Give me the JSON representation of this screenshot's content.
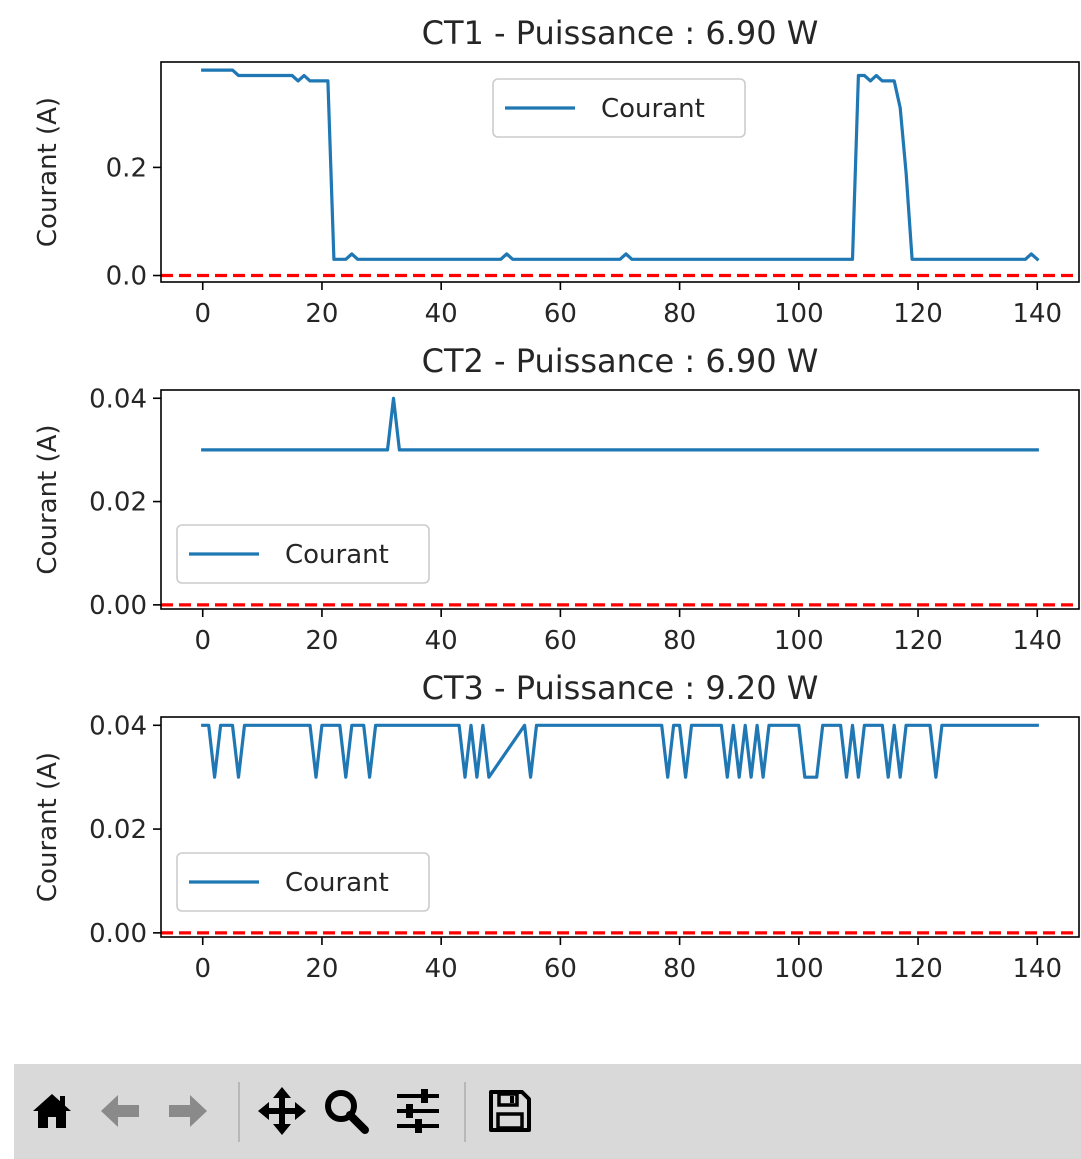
{
  "chart_data": [
    {
      "type": "line",
      "title": "CT1 - Puissance : 6.90 W",
      "ylabel": "Courant (A)",
      "xlabel": "",
      "xlim": [
        -7,
        147
      ],
      "ylim": [
        -0.012,
        0.395
      ],
      "xticks": [
        0,
        20,
        40,
        60,
        80,
        100,
        120,
        140
      ],
      "xtick_labels": [
        "0",
        "20",
        "40",
        "60",
        "80",
        "100",
        "120",
        "140"
      ],
      "yticks": [
        0.0,
        0.2
      ],
      "ytick_labels": [
        "0.0",
        "0.2"
      ],
      "legend": {
        "label": "Courant",
        "placement": "upper center"
      },
      "threshold": {
        "y": 0,
        "color": "#ff0000",
        "style": "dashed"
      },
      "series": [
        {
          "name": "Courant",
          "color": "#1f77b4",
          "x": [
            0,
            5,
            6,
            15,
            16,
            17,
            18,
            21,
            22,
            24,
            25,
            26,
            50,
            51,
            52,
            70,
            71,
            72,
            109,
            110,
            111,
            112,
            113,
            114,
            115,
            116,
            117,
            118,
            119,
            138,
            139,
            140
          ],
          "y": [
            0.38,
            0.38,
            0.37,
            0.37,
            0.36,
            0.37,
            0.36,
            0.36,
            0.03,
            0.03,
            0.04,
            0.03,
            0.03,
            0.04,
            0.03,
            0.03,
            0.04,
            0.03,
            0.03,
            0.37,
            0.37,
            0.36,
            0.37,
            0.36,
            0.36,
            0.36,
            0.31,
            0.19,
            0.03,
            0.03,
            0.04,
            0.03
          ]
        }
      ]
    },
    {
      "type": "line",
      "title": "CT2 - Puissance : 6.90 W",
      "ylabel": "Courant (A)",
      "xlabel": "",
      "xlim": [
        -7,
        147
      ],
      "ylim": [
        -0.0008,
        0.0416
      ],
      "xticks": [
        0,
        20,
        40,
        60,
        80,
        100,
        120,
        140
      ],
      "xtick_labels": [
        "0",
        "20",
        "40",
        "60",
        "80",
        "100",
        "120",
        "140"
      ],
      "yticks": [
        0.0,
        0.02,
        0.04
      ],
      "ytick_labels": [
        "0.00",
        "0.02",
        "0.04"
      ],
      "legend": {
        "label": "Courant",
        "placement": "lower left"
      },
      "threshold": {
        "y": 0,
        "color": "#ff0000",
        "style": "dashed"
      },
      "series": [
        {
          "name": "Courant",
          "color": "#1f77b4",
          "x": [
            0,
            31,
            32,
            33,
            140
          ],
          "y": [
            0.03,
            0.03,
            0.04,
            0.03,
            0.03
          ]
        }
      ]
    },
    {
      "type": "line",
      "title": "CT3 - Puissance : 9.20 W",
      "ylabel": "Courant (A)",
      "xlabel": "",
      "xlim": [
        -7,
        147
      ],
      "ylim": [
        -0.0008,
        0.0416
      ],
      "xticks": [
        0,
        20,
        40,
        60,
        80,
        100,
        120,
        140
      ],
      "xtick_labels": [
        "0",
        "20",
        "40",
        "60",
        "80",
        "100",
        "120",
        "140"
      ],
      "yticks": [
        0.0,
        0.02,
        0.04
      ],
      "ytick_labels": [
        "0.00",
        "0.02",
        "0.04"
      ],
      "legend": {
        "label": "Courant",
        "placement": "lower left"
      },
      "threshold": {
        "y": 0,
        "color": "#ff0000",
        "style": "dashed"
      },
      "series": [
        {
          "name": "Courant",
          "color": "#1f77b4",
          "x": [
            0,
            1,
            2,
            3,
            5,
            6,
            7,
            18,
            19,
            20,
            23,
            24,
            25,
            27,
            28,
            29,
            43,
            44,
            45,
            46,
            47,
            48,
            54,
            55,
            56,
            77,
            78,
            79,
            80,
            81,
            82,
            87,
            88,
            89,
            90,
            91,
            92,
            93,
            94,
            95,
            100,
            101,
            103,
            104,
            107,
            108,
            109,
            110,
            111,
            112,
            114,
            115,
            116,
            117,
            118,
            119,
            122,
            123,
            124,
            140
          ],
          "y": [
            0.04,
            0.04,
            0.03,
            0.04,
            0.04,
            0.03,
            0.04,
            0.04,
            0.03,
            0.04,
            0.04,
            0.03,
            0.04,
            0.04,
            0.03,
            0.04,
            0.04,
            0.03,
            0.04,
            0.03,
            0.04,
            0.03,
            0.04,
            0.03,
            0.04,
            0.04,
            0.03,
            0.04,
            0.04,
            0.03,
            0.04,
            0.04,
            0.03,
            0.04,
            0.03,
            0.04,
            0.03,
            0.04,
            0.03,
            0.04,
            0.04,
            0.03,
            0.03,
            0.04,
            0.04,
            0.03,
            0.04,
            0.03,
            0.04,
            0.04,
            0.04,
            0.03,
            0.04,
            0.03,
            0.04,
            0.04,
            0.04,
            0.03,
            0.04,
            0.04
          ]
        }
      ]
    }
  ],
  "toolbar": {
    "buttons": [
      {
        "name": "home-icon"
      },
      {
        "name": "back-icon"
      },
      {
        "name": "forward-icon"
      },
      {
        "name": "pan-icon"
      },
      {
        "name": "zoom-icon"
      },
      {
        "name": "configure-subplots-icon"
      },
      {
        "name": "save-icon"
      }
    ],
    "icon_color": "#000000",
    "disabled_icon_color": "#8a8a8a",
    "background": "#d9d9d9"
  }
}
